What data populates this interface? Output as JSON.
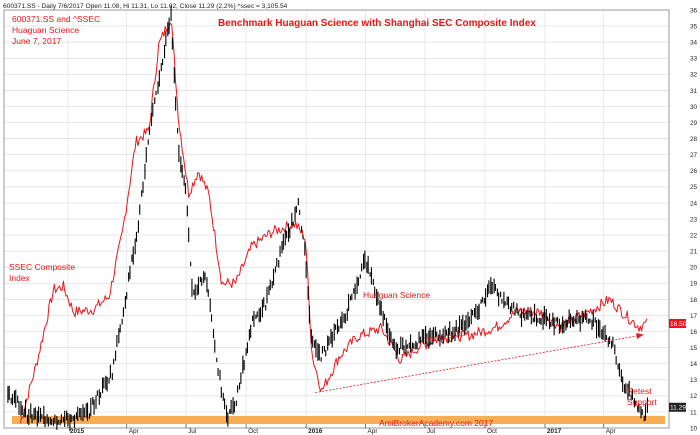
{
  "header": {
    "info": "600371.SS - Daily 7/6/2017 Open 11.08, Hi 11.31, Lo 11.02, Close 11.29 (2.2%) ^ssec = 3,105.54"
  },
  "title_block": {
    "line1": "600371.SS and ^SSEC",
    "line2": "Huaguan Science",
    "line3": "June 7, 2017"
  },
  "chart_title": "Benchmark Huaguan Science with Shanghai SEC Composite Index",
  "annotations": {
    "ssec_line1": "SSEC Composite",
    "ssec_line2": "Index",
    "huaguan": "Huaguan Science",
    "trend": "Trend is Up",
    "retest1": "Retest",
    "retest2": "Support",
    "watermark": "AmiBrokerAcademy.com  2017"
  },
  "price_markers": {
    "ssec": "16.50",
    "stock": "11.29"
  },
  "colors": {
    "ssec": "#e8161b",
    "stock": "#000000",
    "support": "#f7a94a",
    "trend": "#e8161b",
    "grid": "#d8d8d8"
  },
  "chart_data": {
    "type": "line",
    "y_axis": {
      "range": [
        10,
        36
      ],
      "ticks": [
        10,
        11,
        12,
        13,
        14,
        15,
        16,
        17,
        18,
        19,
        20,
        21,
        22,
        23,
        24,
        25,
        26,
        27,
        28,
        29,
        30,
        31,
        32,
        33,
        34,
        35,
        36
      ],
      "position": "right"
    },
    "x_ticks": [
      "2015",
      "Apr",
      "Jul",
      "Oct",
      "2016",
      "Apr",
      "Jul",
      "Oct",
      "2017",
      "Apr"
    ],
    "grid": true,
    "support_level": 10.5,
    "trendline": {
      "from": [
        "2016-01",
        12.2
      ],
      "to": [
        "2017-06",
        15.8
      ]
    },
    "series": [
      {
        "name": "SSEC Composite Index",
        "style": "line",
        "points": [
          [
            "2014-10-20",
            10.3
          ],
          [
            "2014-11-15",
            14.2
          ],
          [
            "2014-12-10",
            18.6
          ],
          [
            "2014-12-25",
            18.8
          ],
          [
            "2015-01-10",
            17.2
          ],
          [
            "2015-02-10",
            17.4
          ],
          [
            "2015-03-05",
            18.2
          ],
          [
            "2015-03-25",
            22.0
          ],
          [
            "2015-04-15",
            27.8
          ],
          [
            "2015-05-05",
            28.5
          ],
          [
            "2015-05-20",
            33.8
          ],
          [
            "2015-06-08",
            35.6
          ],
          [
            "2015-06-20",
            29.0
          ],
          [
            "2015-07-05",
            24.6
          ],
          [
            "2015-07-20",
            26.0
          ],
          [
            "2015-08-05",
            24.5
          ],
          [
            "2015-08-25",
            19.0
          ],
          [
            "2015-09-15",
            19.0
          ],
          [
            "2015-10-10",
            21.3
          ],
          [
            "2015-11-10",
            22.2
          ],
          [
            "2015-12-15",
            22.7
          ],
          [
            "2015-12-31",
            21.8
          ],
          [
            "2016-01-10",
            14.5
          ],
          [
            "2016-01-25",
            12.3
          ],
          [
            "2016-02-20",
            14.4
          ],
          [
            "2016-03-20",
            15.7
          ],
          [
            "2016-04-25",
            16.2
          ],
          [
            "2016-05-25",
            14.2
          ],
          [
            "2016-06-20",
            15.0
          ],
          [
            "2016-07-25",
            15.6
          ],
          [
            "2016-09-10",
            15.8
          ],
          [
            "2016-10-20",
            16.3
          ],
          [
            "2016-11-20",
            17.3
          ],
          [
            "2016-12-25",
            17.2
          ],
          [
            "2017-01-25",
            16.3
          ],
          [
            "2017-02-25",
            17.0
          ],
          [
            "2017-03-25",
            17.6
          ],
          [
            "2017-04-10",
            18.0
          ],
          [
            "2017-05-05",
            17.0
          ],
          [
            "2017-05-25",
            16.3
          ],
          [
            "2017-06-07",
            16.5
          ]
        ]
      },
      {
        "name": "Huaguan Science",
        "style": "bars",
        "points": [
          [
            "2014-10-01",
            12.2
          ],
          [
            "2014-10-15",
            11.6
          ],
          [
            "2014-11-01",
            10.8
          ],
          [
            "2014-12-01",
            10.6
          ],
          [
            "2014-12-31",
            10.5
          ],
          [
            "2015-02-01",
            10.9
          ],
          [
            "2015-03-10",
            13.5
          ],
          [
            "2015-04-01",
            18.4
          ],
          [
            "2015-04-20",
            23.0
          ],
          [
            "2015-05-05",
            28.0
          ],
          [
            "2015-05-20",
            31.5
          ],
          [
            "2015-06-08",
            35.8
          ],
          [
            "2015-06-20",
            27.0
          ],
          [
            "2015-07-01",
            25.0
          ],
          [
            "2015-07-10",
            18.5
          ],
          [
            "2015-08-01",
            19.5
          ],
          [
            "2015-08-20",
            13.5
          ],
          [
            "2015-09-01",
            10.6
          ],
          [
            "2015-09-15",
            11.5
          ],
          [
            "2015-10-10",
            16.5
          ],
          [
            "2015-11-01",
            17.8
          ],
          [
            "2015-11-20",
            20.5
          ],
          [
            "2015-12-20",
            23.8
          ],
          [
            "2015-12-31",
            21.0
          ],
          [
            "2016-01-10",
            15.2
          ],
          [
            "2016-01-25",
            14.5
          ],
          [
            "2016-03-01",
            17.0
          ],
          [
            "2016-04-01",
            20.5
          ],
          [
            "2016-04-20",
            18.0
          ],
          [
            "2016-05-15",
            15.0
          ],
          [
            "2016-06-15",
            15.3
          ],
          [
            "2016-07-15",
            15.8
          ],
          [
            "2016-08-15",
            16.0
          ],
          [
            "2016-09-15",
            17.0
          ],
          [
            "2016-10-10",
            18.8
          ],
          [
            "2016-11-01",
            17.8
          ],
          [
            "2016-11-20",
            17.2
          ],
          [
            "2016-12-20",
            16.9
          ],
          [
            "2017-01-20",
            16.5
          ],
          [
            "2017-02-20",
            16.8
          ],
          [
            "2017-03-15",
            16.7
          ],
          [
            "2017-04-01",
            16.0
          ],
          [
            "2017-04-15",
            15.2
          ],
          [
            "2017-05-01",
            12.8
          ],
          [
            "2017-05-20",
            11.5
          ],
          [
            "2017-06-01",
            10.7
          ],
          [
            "2017-06-07",
            11.3
          ]
        ]
      }
    ]
  }
}
